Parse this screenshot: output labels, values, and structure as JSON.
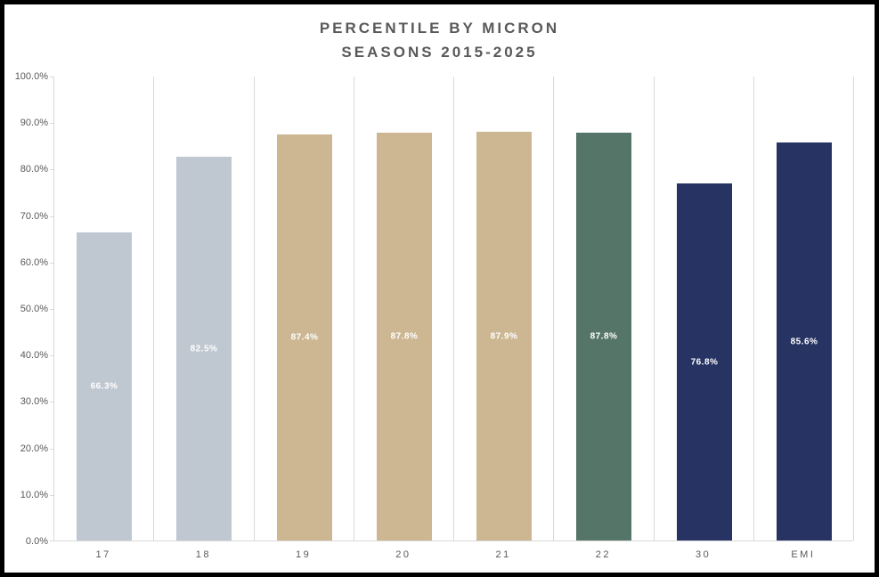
{
  "colors": {
    "frame_border": "#000000",
    "background": "#ffffff",
    "title_text": "#595959",
    "axis_text": "#595959",
    "grid_line": "#d9d9d9",
    "data_label_text": "#ffffff",
    "bar_light_gray": "#bfc7d1",
    "bar_tan": "#ccb792",
    "bar_green": "#567569",
    "bar_navy": "#263363"
  },
  "chart_data": {
    "type": "bar",
    "title_line1": "PERCENTILE BY MICRON",
    "title_line2": "SEASONS 2015-2025",
    "xlabel": "",
    "ylabel": "",
    "ylim": [
      0,
      100
    ],
    "grid": "vertical-category-boundaries",
    "legend": "none",
    "categories": [
      "17",
      "18",
      "19",
      "20",
      "21",
      "22",
      "30",
      "EMI"
    ],
    "values": [
      66.3,
      82.5,
      87.4,
      87.8,
      87.9,
      87.8,
      76.8,
      85.6
    ],
    "data_labels": [
      "66.3%",
      "82.5%",
      "87.4%",
      "87.8%",
      "87.9%",
      "87.8%",
      "76.8%",
      "85.6%"
    ],
    "data_label_position": "inside-center",
    "bar_colors": [
      "#bfc7d1",
      "#bfc7d1",
      "#ccb792",
      "#ccb792",
      "#ccb792",
      "#567569",
      "#263363",
      "#263363"
    ],
    "y_ticks": [
      {
        "value": 100,
        "label": "100.0%"
      },
      {
        "value": 90,
        "label": "90.0%"
      },
      {
        "value": 80,
        "label": "80.0%"
      },
      {
        "value": 70,
        "label": "70.0%"
      },
      {
        "value": 60,
        "label": "60.0%"
      },
      {
        "value": 50,
        "label": "50.0%"
      },
      {
        "value": 40,
        "label": "40.0%"
      },
      {
        "value": 30,
        "label": "30.0%"
      },
      {
        "value": 20,
        "label": "20.0%"
      },
      {
        "value": 10,
        "label": "10.0%"
      },
      {
        "value": 0,
        "label": "0.0%"
      }
    ]
  }
}
